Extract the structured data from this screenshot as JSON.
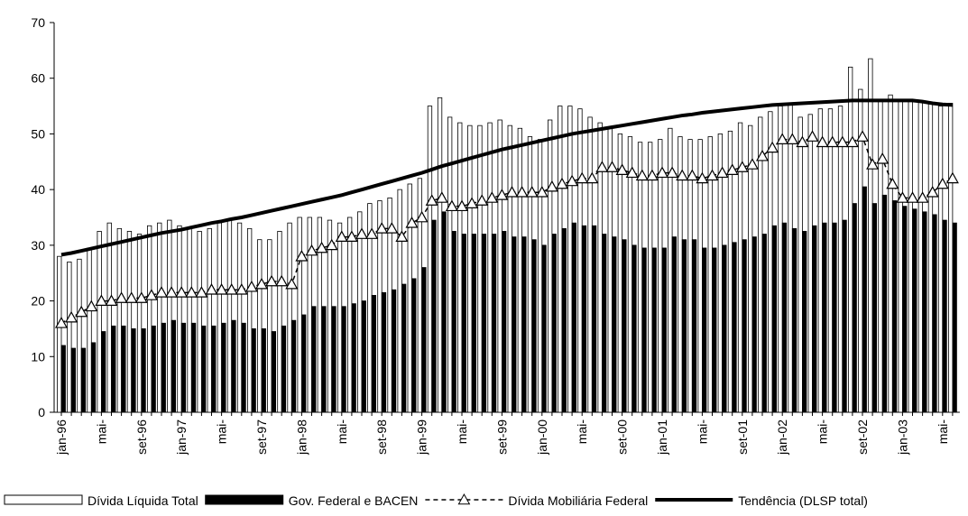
{
  "chart_data": {
    "type": "bar",
    "categories": [
      "jan-96",
      null,
      null,
      null,
      "mai-",
      null,
      null,
      null,
      "set-96",
      null,
      null,
      null,
      "jan-97",
      null,
      null,
      null,
      "mai-",
      null,
      null,
      null,
      "set-97",
      null,
      null,
      null,
      "jan-98",
      null,
      null,
      null,
      "mai-",
      null,
      null,
      null,
      "set-98",
      null,
      null,
      null,
      "jan-99",
      null,
      null,
      null,
      "mai-",
      null,
      null,
      null,
      "set-99",
      null,
      null,
      null,
      "jan-00",
      null,
      null,
      null,
      "mai-",
      null,
      null,
      null,
      "set-00",
      null,
      null,
      null,
      "jan-01",
      null,
      null,
      null,
      "mai-",
      null,
      null,
      null,
      "set-01",
      null,
      null,
      null,
      "jan-02",
      null,
      null,
      null,
      "mai-",
      null,
      null,
      null,
      "set-02",
      null,
      null,
      null,
      "jan-03",
      null,
      null,
      null,
      "mai-",
      null
    ],
    "ylim": [
      0,
      70
    ],
    "yticks": [
      0,
      10,
      20,
      30,
      40,
      50,
      60,
      70
    ],
    "series": [
      {
        "name": "Dívida Líquida Total",
        "type": "bar",
        "color": "#ffffff",
        "values": [
          28,
          27,
          27.5,
          29.5,
          32.5,
          34,
          33,
          32.5,
          32,
          33.5,
          34,
          34.5,
          33.5,
          33,
          32.5,
          33,
          34,
          34.5,
          34,
          33,
          31,
          31,
          32.5,
          34,
          35,
          35,
          35,
          34.5,
          34,
          35,
          36,
          37.5,
          38,
          38.5,
          40,
          41,
          42,
          55,
          56.5,
          53,
          52,
          51.5,
          51.5,
          52,
          52.5,
          51.5,
          51,
          49.5,
          49,
          52.5,
          55,
          55,
          54.5,
          53,
          52,
          51,
          50,
          49.5,
          48.5,
          48.5,
          49,
          51,
          49.5,
          49,
          49,
          49.5,
          50,
          50.5,
          52,
          51.5,
          53,
          54,
          55,
          55.5,
          53,
          53.5,
          54.5,
          54.5,
          55,
          62,
          58,
          63.5,
          56,
          57,
          56,
          56,
          56,
          55.5,
          55,
          55.5
        ]
      },
      {
        "name": "Gov. Federal e BACEN",
        "type": "bar",
        "color": "#000000",
        "values": [
          12,
          11.5,
          11.5,
          12.5,
          14.5,
          15.5,
          15.5,
          15,
          15,
          15.5,
          16,
          16.5,
          16,
          16,
          15.5,
          15.5,
          16,
          16.5,
          16,
          15,
          15,
          14.5,
          15.5,
          16.5,
          17.5,
          19,
          19,
          19,
          19,
          19.5,
          20,
          21,
          21.5,
          22,
          23,
          24,
          26,
          34.5,
          36,
          32.5,
          32,
          32,
          32,
          32,
          32.5,
          31.5,
          31.5,
          31,
          30,
          32,
          33,
          34,
          33.5,
          33.5,
          32,
          31.5,
          31,
          30,
          29.5,
          29.5,
          29.5,
          31.5,
          31,
          31,
          29.5,
          29.5,
          30,
          30.5,
          31,
          31.5,
          32,
          33.5,
          34,
          33,
          32.5,
          33.5,
          34,
          34,
          34.5,
          37.5,
          40.5,
          37.5,
          39,
          38,
          37,
          36.5,
          36,
          35.5,
          34.5,
          34
        ]
      },
      {
        "name": "Dívida Mobiliária Federal",
        "type": "line",
        "color": "#000000",
        "dashed": true,
        "marker": "triangle",
        "values": [
          16,
          17,
          18,
          19,
          20,
          20,
          20.5,
          20.5,
          20.5,
          21,
          21.5,
          21.5,
          21.5,
          21.5,
          21.5,
          22,
          22,
          22,
          22,
          22.5,
          23,
          23.5,
          23.5,
          23,
          28,
          29,
          29.5,
          30,
          31.5,
          31.5,
          32,
          32,
          33,
          33,
          31.5,
          34,
          35,
          38,
          38.5,
          37,
          37,
          37.5,
          38,
          38.5,
          39,
          39.5,
          39.5,
          39.5,
          39.5,
          40.5,
          41,
          41.5,
          42,
          42,
          44,
          44,
          43.5,
          43,
          42.5,
          42.5,
          43,
          43,
          42.5,
          42.5,
          42,
          42.5,
          43,
          43.5,
          44,
          44.5,
          46,
          47.5,
          49,
          49,
          48.5,
          49.5,
          48.5,
          48.5,
          48.5,
          48.5,
          49.5,
          44.5,
          45.5,
          41,
          38.5,
          38.5,
          38.5,
          39.5,
          41,
          42
        ]
      },
      {
        "name": "Tendência (DLSP total)",
        "type": "line",
        "color": "#000000",
        "values": [
          28.3,
          28.6,
          29,
          29.4,
          29.8,
          30.2,
          30.6,
          31,
          31.4,
          31.8,
          32.2,
          32.5,
          32.8,
          33.2,
          33.6,
          34,
          34.3,
          34.7,
          35,
          35.4,
          35.8,
          36.2,
          36.6,
          37,
          37.4,
          37.8,
          38.2,
          38.6,
          39,
          39.5,
          40,
          40.5,
          41,
          41.5,
          42,
          42.5,
          43,
          43.6,
          44.2,
          44.7,
          45.2,
          45.7,
          46.2,
          46.7,
          47.2,
          47.6,
          48,
          48.4,
          48.8,
          49.2,
          49.6,
          50,
          50.3,
          50.6,
          50.9,
          51.2,
          51.5,
          51.8,
          52.1,
          52.4,
          52.7,
          53,
          53.3,
          53.5,
          53.8,
          54,
          54.2,
          54.4,
          54.6,
          54.8,
          55,
          55.2,
          55.3,
          55.4,
          55.5,
          55.6,
          55.7,
          55.8,
          55.9,
          56,
          56,
          56,
          56,
          56,
          56,
          56,
          55.8,
          55.5,
          55.3,
          55.2
        ]
      }
    ]
  }
}
